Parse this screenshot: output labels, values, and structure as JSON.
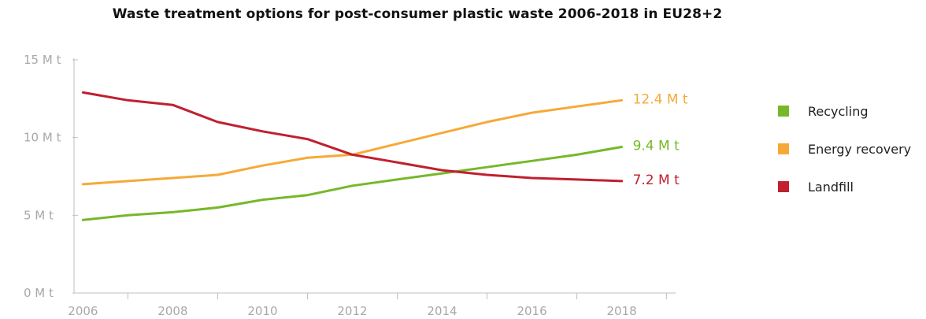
{
  "chart_data": {
    "type": "line",
    "title": "Waste treatment options for post-consumer plastic waste 2006-2018 in EU28+2",
    "xlabel": "",
    "ylabel": "",
    "x": [
      2006,
      2007,
      2008,
      2009,
      2010,
      2011,
      2012,
      2013,
      2014,
      2015,
      2016,
      2017,
      2018
    ],
    "x_ticks": [
      2006,
      2008,
      2010,
      2012,
      2014,
      2016,
      2018
    ],
    "y_ticks": [
      0,
      5,
      10,
      15
    ],
    "y_tick_labels": [
      "0 M t",
      "5 M t",
      "10 M t",
      "15 M t"
    ],
    "xlim": [
      2005.8,
      2019.2
    ],
    "ylim": [
      0,
      15
    ],
    "grid": false,
    "legend_position": "right",
    "series": [
      {
        "name": "Recycling",
        "color": "#76b82a",
        "values": [
          4.7,
          5.0,
          5.2,
          5.5,
          6.0,
          6.3,
          6.9,
          7.3,
          7.7,
          8.1,
          8.5,
          8.9,
          9.4
        ],
        "end_label": "9.4 M t"
      },
      {
        "name": "Energy recovery",
        "color": "#f7a937",
        "values": [
          7.0,
          7.2,
          7.4,
          7.6,
          8.2,
          8.7,
          8.9,
          9.6,
          10.3,
          11.0,
          11.6,
          12.0,
          12.4
        ],
        "end_label": "12.4 M t"
      },
      {
        "name": "Landfill",
        "color": "#c0202f",
        "values": [
          12.9,
          12.4,
          12.1,
          11.0,
          10.4,
          9.9,
          8.9,
          8.4,
          7.9,
          7.6,
          7.4,
          7.3,
          7.2
        ],
        "end_label": "7.2 M t"
      }
    ]
  }
}
